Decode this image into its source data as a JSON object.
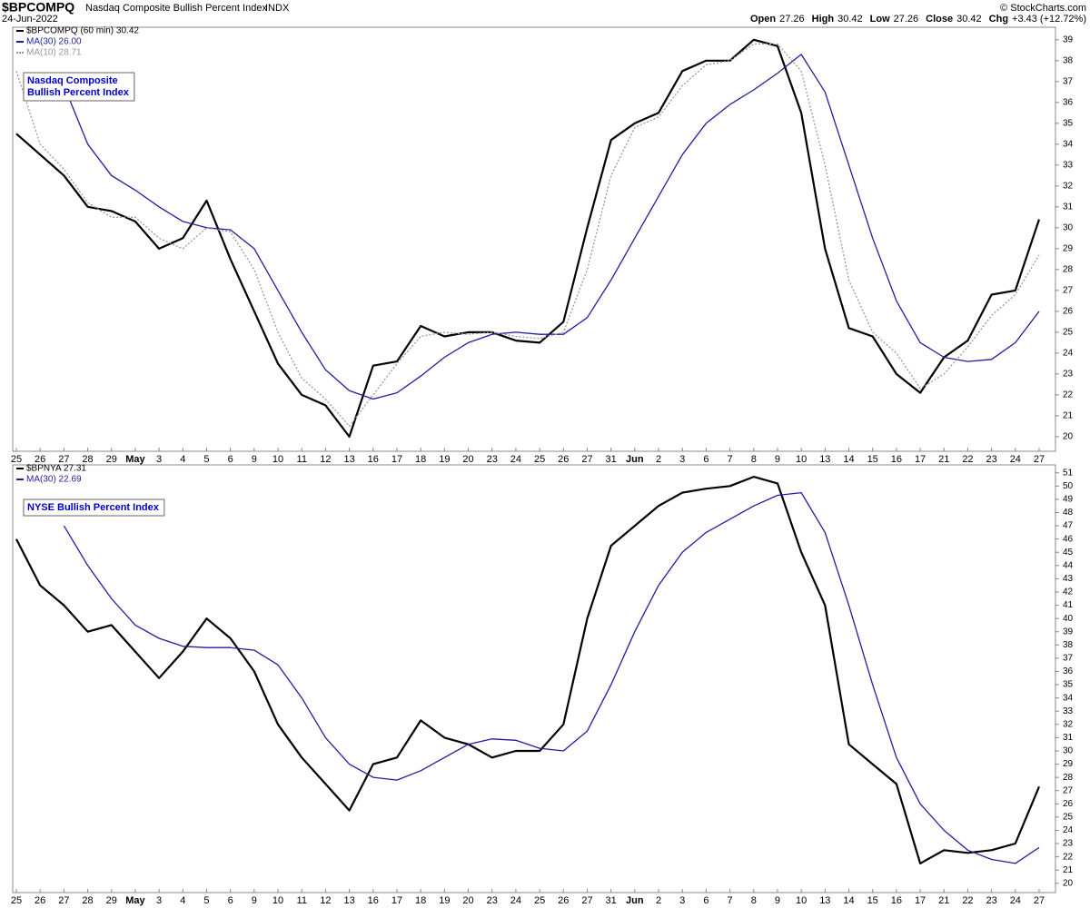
{
  "header": {
    "symbol": "$BPCOMPQ",
    "name": "Nasdaq Composite Bullish Percent Index",
    "exchange": "INDX",
    "date": "24-Jun-2022",
    "quote": [
      {
        "label": "Open",
        "value": 27.26
      },
      {
        "label": "High",
        "value": 30.42
      },
      {
        "label": "Low",
        "value": 27.26
      },
      {
        "label": "Close",
        "value": 30.42
      },
      {
        "label": "Chg",
        "value": "+3.43 (+12.72%)"
      }
    ],
    "copyright": "© StockCharts.com"
  },
  "chart_data": [
    {
      "type": "line",
      "annotation": [
        "Nasdaq Composite",
        "Bullish Percent Index"
      ],
      "categories": [
        "25",
        "26",
        "27",
        "28",
        "29",
        "May",
        "3",
        "4",
        "5",
        "6",
        "9",
        "10",
        "11",
        "12",
        "13",
        "16",
        "17",
        "18",
        "19",
        "20",
        "23",
        "24",
        "25",
        "26",
        "27",
        "31",
        "Jun",
        "2",
        "3",
        "6",
        "7",
        "8",
        "9",
        "10",
        "13",
        "14",
        "15",
        "16",
        "17",
        "21",
        "22",
        "23",
        "24",
        "27"
      ],
      "series": [
        {
          "name": "$BPCOMPQ (60 min) 30.42",
          "color": "#000000",
          "style": "solid",
          "values": [
            34.5,
            33.5,
            32.5,
            31.0,
            30.8,
            30.3,
            29.0,
            29.5,
            31.3,
            28.5,
            26.0,
            23.5,
            22.0,
            21.5,
            20.0,
            23.4,
            23.6,
            25.3,
            24.8,
            25.0,
            25.0,
            24.6,
            24.5,
            25.5,
            30.0,
            34.2,
            35.0,
            35.5,
            37.5,
            38.0,
            38.0,
            39.0,
            38.7,
            35.5,
            29.0,
            25.2,
            24.8,
            23.0,
            22.1,
            23.8,
            24.6,
            26.8,
            27.0,
            30.4
          ]
        },
        {
          "name": "MA(30) 26.00",
          "color": "#1f1f9e",
          "style": "solid",
          "values": [
            null,
            null,
            36.8,
            34.0,
            32.5,
            31.8,
            31.0,
            30.3,
            30.0,
            29.9,
            29.0,
            27.0,
            25.0,
            23.2,
            22.2,
            21.8,
            22.1,
            22.9,
            23.8,
            24.5,
            24.9,
            25.0,
            24.9,
            24.9,
            25.7,
            27.5,
            29.5,
            31.5,
            33.5,
            35.0,
            35.9,
            36.6,
            37.4,
            38.3,
            36.5,
            33.0,
            29.5,
            26.5,
            24.5,
            23.8,
            23.6,
            23.7,
            24.5,
            26.0
          ]
        },
        {
          "name": "MA(10) 28.71",
          "color": "#999999",
          "style": "dotted",
          "values": [
            37.5,
            34.0,
            32.8,
            31.2,
            30.5,
            30.5,
            29.5,
            29.0,
            30.0,
            29.8,
            28.0,
            25.0,
            22.8,
            21.8,
            20.5,
            22.0,
            23.5,
            24.8,
            25.0,
            24.9,
            25.0,
            24.8,
            24.7,
            25.0,
            28.0,
            32.5,
            34.8,
            35.3,
            36.8,
            37.8,
            38.0,
            38.8,
            38.8,
            37.5,
            33.0,
            27.5,
            25.0,
            24.0,
            22.3,
            23.0,
            24.3,
            25.8,
            26.8,
            28.7
          ]
        }
      ],
      "ylim": [
        19.3,
        39.6
      ],
      "yticks": [
        20,
        21,
        22,
        23,
        24,
        25,
        26,
        27,
        28,
        29,
        30,
        31,
        32,
        33,
        34,
        35,
        36,
        37,
        38,
        39
      ]
    },
    {
      "type": "line",
      "annotation": [
        "NYSE Bullish Percent Index"
      ],
      "categories": [
        "25",
        "26",
        "27",
        "28",
        "29",
        "May",
        "3",
        "4",
        "5",
        "6",
        "9",
        "10",
        "11",
        "12",
        "13",
        "16",
        "17",
        "18",
        "19",
        "20",
        "23",
        "24",
        "25",
        "26",
        "27",
        "31",
        "Jun",
        "2",
        "3",
        "6",
        "7",
        "8",
        "9",
        "10",
        "13",
        "14",
        "15",
        "16",
        "17",
        "21",
        "22",
        "23",
        "24",
        "27"
      ],
      "series": [
        {
          "name": "$BPNYA 27.31",
          "color": "#000000",
          "style": "solid",
          "values": [
            46.0,
            42.5,
            41.0,
            39.0,
            39.5,
            37.5,
            35.5,
            37.5,
            40.0,
            38.5,
            36.0,
            32.0,
            29.5,
            27.5,
            25.5,
            29.0,
            29.5,
            32.3,
            31.0,
            30.5,
            29.5,
            30.0,
            30.0,
            32.0,
            40.0,
            45.5,
            47.0,
            48.5,
            49.5,
            49.8,
            50.0,
            50.7,
            50.2,
            45.0,
            41.0,
            30.5,
            29.0,
            27.5,
            21.5,
            22.5,
            22.3,
            22.5,
            23.0,
            27.3
          ]
        },
        {
          "name": "MA(30) 22.69",
          "color": "#1f1f9e",
          "style": "solid",
          "values": [
            null,
            null,
            47.0,
            44.0,
            41.5,
            39.5,
            38.5,
            37.9,
            37.8,
            37.8,
            37.6,
            36.5,
            34.0,
            31.0,
            29.0,
            28.0,
            27.8,
            28.5,
            29.5,
            30.5,
            30.9,
            30.8,
            30.2,
            30.0,
            31.5,
            35.0,
            39.0,
            42.5,
            45.0,
            46.5,
            47.5,
            48.5,
            49.3,
            49.5,
            46.5,
            41.0,
            35.0,
            29.5,
            26.0,
            24.0,
            22.5,
            21.8,
            21.5,
            22.7
          ]
        }
      ],
      "ylim": [
        19.3,
        51.6
      ],
      "yticks": [
        20,
        21,
        22,
        23,
        24,
        25,
        26,
        27,
        28,
        29,
        30,
        31,
        32,
        33,
        34,
        35,
        36,
        37,
        38,
        39,
        40,
        41,
        42,
        43,
        44,
        45,
        46,
        47,
        48,
        49,
        50,
        51
      ]
    }
  ]
}
